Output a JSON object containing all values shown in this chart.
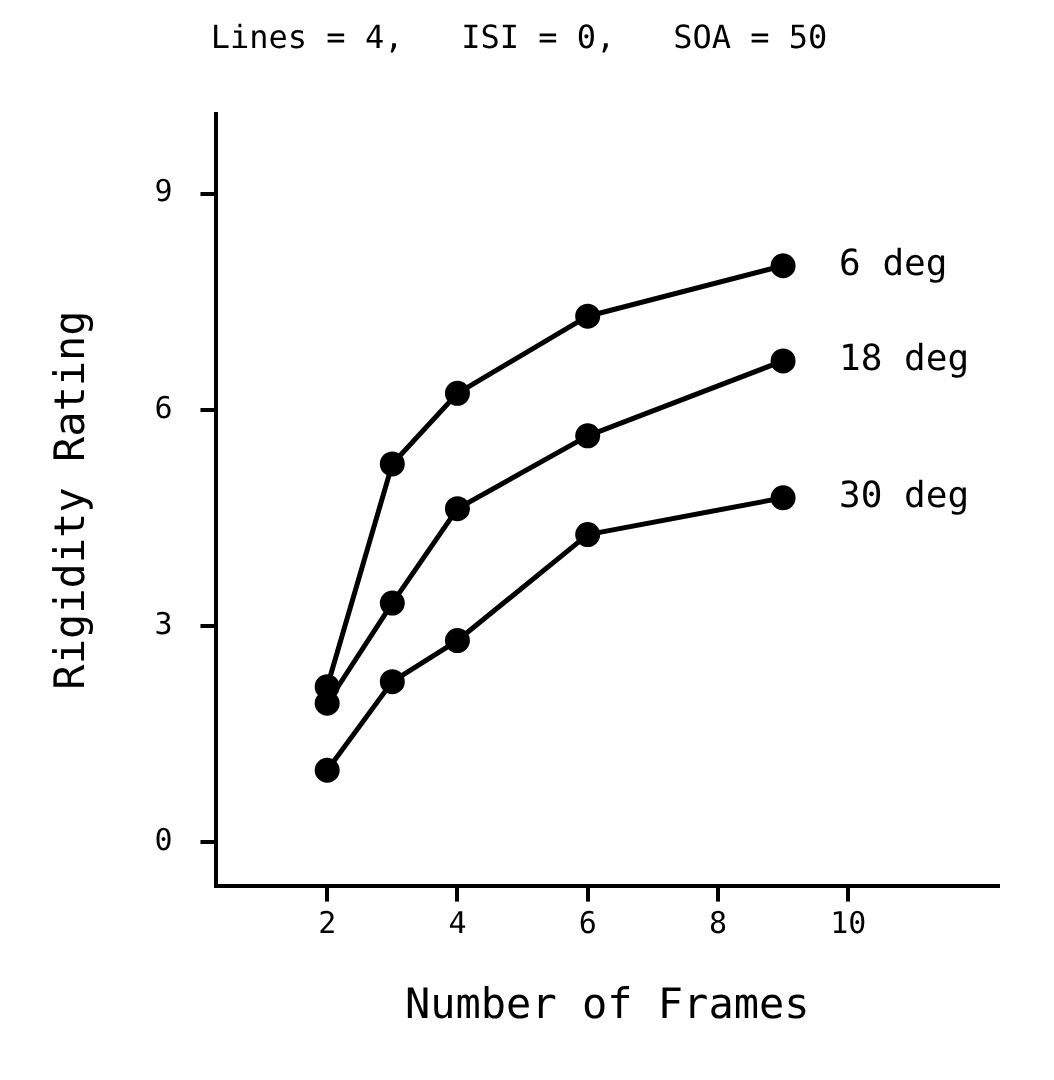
{
  "chart_data": {
    "type": "line",
    "title": "Lines = 4,   ISI = 0,   SOA = 50",
    "xlabel": "Number of Frames",
    "ylabel": "Rigidity Rating",
    "x": [
      2,
      3,
      4,
      6,
      9
    ],
    "series": [
      {
        "name": "6 deg",
        "color": "#000000",
        "values": [
          2.16,
          5.25,
          6.23,
          7.3,
          8.0
        ]
      },
      {
        "name": "18 deg",
        "color": "#000000",
        "values": [
          1.93,
          3.32,
          4.63,
          5.64,
          6.68
        ]
      },
      {
        "name": "30 deg",
        "color": "#000000",
        "values": [
          1.0,
          2.23,
          2.8,
          4.27,
          4.78
        ]
      }
    ],
    "xlim": [
      0.3,
      12.3
    ],
    "xticks": [
      2,
      4,
      6,
      8,
      10
    ],
    "ylim": [
      -0.6,
      10.1
    ],
    "yticks": [
      0,
      3,
      6,
      9
    ],
    "grid": false,
    "legend": false,
    "marker": "circle",
    "line_style": "solid"
  }
}
